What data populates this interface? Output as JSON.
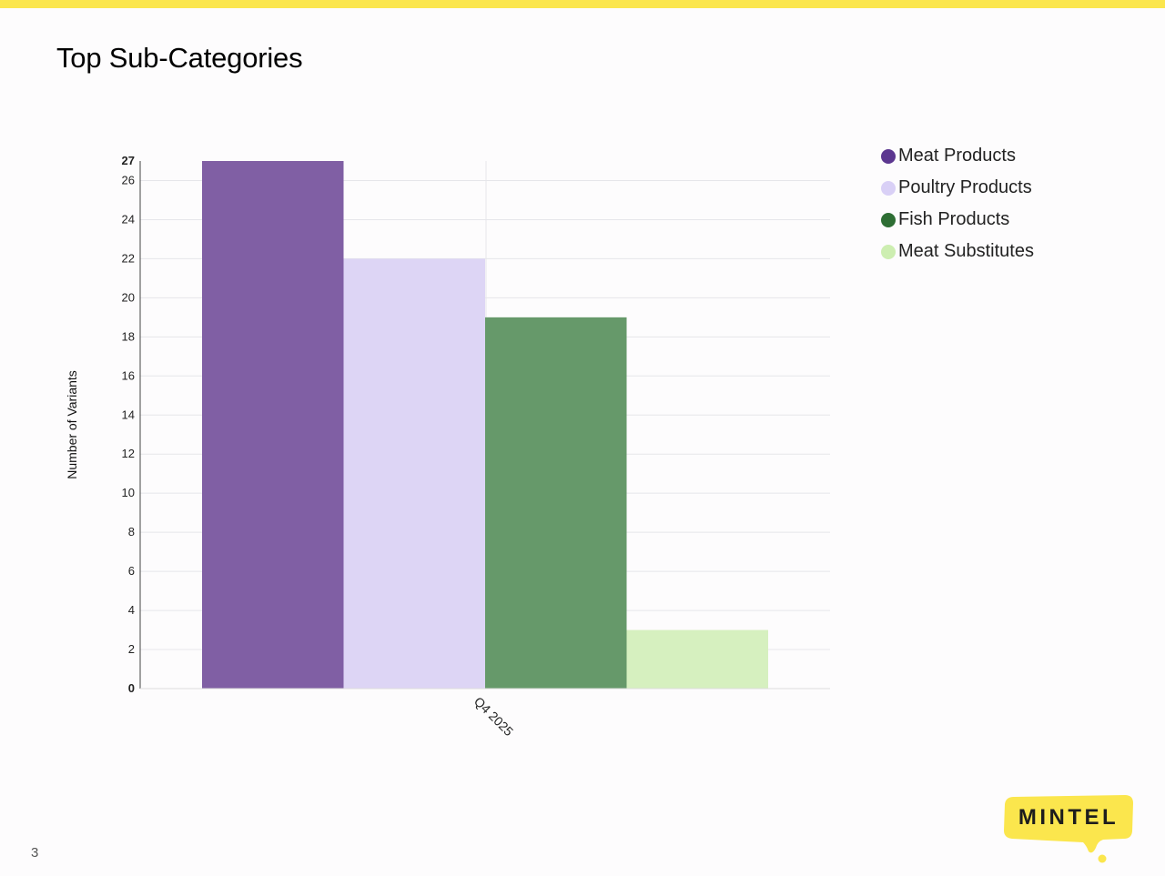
{
  "slide": {
    "title": "Top Sub-Categories",
    "page_number": "3"
  },
  "logo": {
    "text": "MINTEL",
    "color": "#fbe64d"
  },
  "colors": {
    "accent_bar": "#fbe64d",
    "gridline": "#e6e6ea"
  },
  "legend": {
    "items": [
      {
        "label": "Meat Products",
        "color": "#5c3790"
      },
      {
        "label": "Poultry Products",
        "color": "#d9d0f6"
      },
      {
        "label": "Fish Products",
        "color": "#2e6e34"
      },
      {
        "label": "Meat Substitutes",
        "color": "#cdeeb1"
      }
    ]
  },
  "chart_data": {
    "type": "bar",
    "title": "",
    "xlabel": "",
    "ylabel": "Number of Variants",
    "categories": [
      "Q4 2025"
    ],
    "series": [
      {
        "name": "Meat Products",
        "values": [
          27
        ],
        "color": "#805fa4"
      },
      {
        "name": "Poultry Products",
        "values": [
          22
        ],
        "color": "#ddd5f5"
      },
      {
        "name": "Fish Products",
        "values": [
          19
        ],
        "color": "#66996a"
      },
      {
        "name": "Meat Substitutes",
        "values": [
          3
        ],
        "color": "#d6f0bf"
      }
    ],
    "ylim": [
      0,
      27
    ],
    "yticks": [
      0,
      2,
      4,
      6,
      8,
      10,
      12,
      14,
      16,
      18,
      20,
      22,
      24,
      26,
      27
    ],
    "bold_yticks": [
      0,
      27
    ],
    "grid": true,
    "legend_position": "right"
  }
}
